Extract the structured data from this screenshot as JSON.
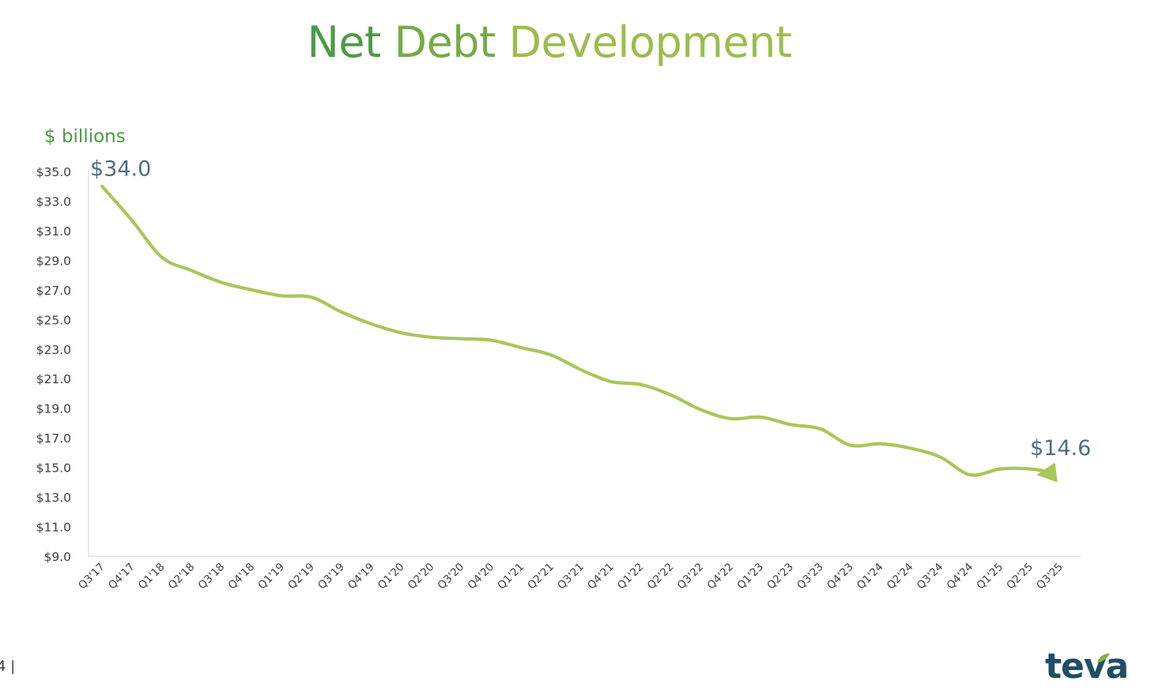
{
  "page": {
    "title_words": [
      "Net",
      "Debt",
      "Development"
    ],
    "title_colors": [
      "#4e9a45",
      "#76ab47",
      "#9bbd4c"
    ],
    "unit_label": "$ billions",
    "unit_color": "#4e9a45",
    "page_number": "4 |",
    "logo_text": "teva",
    "logo_color": "#1f4e68",
    "logo_leaf_color": "#86b244"
  },
  "chart_data": {
    "type": "line",
    "title": "Net Debt Development",
    "ylabel": "$ billions",
    "ylim": [
      9,
      35
    ],
    "yticks": [
      9,
      11,
      13,
      15,
      17,
      19,
      21,
      23,
      25,
      27,
      29,
      31,
      33,
      35
    ],
    "ytick_labels": [
      "$9.0",
      "$11.0",
      "$13.0",
      "$15.0",
      "$17.0",
      "$19.0",
      "$21.0",
      "$23.0",
      "$25.0",
      "$27.0",
      "$29.0",
      "$31.0",
      "$33.0",
      "$35.0"
    ],
    "categories": [
      "Q3'17",
      "Q4'17",
      "Q1'18",
      "Q2'18",
      "Q3'18",
      "Q4'18",
      "Q1'19",
      "Q2'19",
      "Q3'19",
      "Q4'19",
      "Q1'20",
      "Q2'20",
      "Q3'20",
      "Q4'20",
      "Q1'21",
      "Q2'21",
      "Q3'21",
      "Q4'21",
      "Q1'22",
      "Q2'22",
      "Q3'22",
      "Q4'22",
      "Q1'23",
      "Q2'23",
      "Q3'23",
      "Q4'23",
      "Q1'24",
      "Q2'24",
      "Q3'24",
      "Q4'24",
      "Q1'25",
      "Q2'25",
      "Q3'25"
    ],
    "series": [
      {
        "values": [
          34.0,
          31.7,
          29.2,
          28.3,
          27.5,
          27.0,
          26.6,
          26.5,
          25.5,
          24.7,
          24.1,
          23.8,
          23.7,
          23.6,
          23.1,
          22.6,
          21.6,
          20.8,
          20.6,
          19.9,
          18.9,
          18.3,
          18.4,
          17.9,
          17.6,
          16.5,
          16.6,
          16.3,
          15.7,
          14.5,
          14.9,
          14.9,
          14.6
        ]
      }
    ],
    "annotations": [
      {
        "label": "$34.0",
        "index": 0
      },
      {
        "label": "$14.6",
        "index": 32
      }
    ],
    "line_color": "#a9c65a",
    "annotation_color": "#4f6f7a",
    "axis_color": "#d9d9d9",
    "tick_label_color": "#404040",
    "grid": false,
    "legend": "none"
  }
}
